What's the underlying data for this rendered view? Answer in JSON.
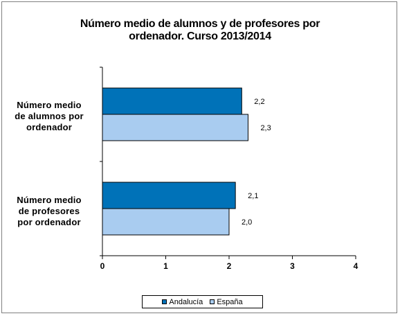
{
  "chart_data": {
    "type": "bar",
    "orientation": "horizontal",
    "title_line1": "Número medio de alumnos y de profesores por",
    "title_line2": "ordenador. Curso 2013/2014",
    "categories": [
      [
        "Número medio",
        "de alumnos por",
        "ordenador"
      ],
      [
        "Número medio",
        "de profesores",
        "por ordenador"
      ]
    ],
    "series": [
      {
        "name": "Andalucía",
        "color": "#0072B8",
        "values": [
          2.2,
          2.1
        ],
        "labels": [
          "2,2",
          "2,1"
        ]
      },
      {
        "name": "España",
        "color": "#A9CCF0",
        "values": [
          2.3,
          2.0
        ],
        "labels": [
          "2,3",
          "2,0"
        ]
      }
    ],
    "xlim": [
      0,
      4
    ],
    "xticks": [
      0,
      1,
      2,
      3,
      4
    ],
    "xlabel": "",
    "ylabel": "",
    "grid": false,
    "legend_position": "bottom"
  }
}
